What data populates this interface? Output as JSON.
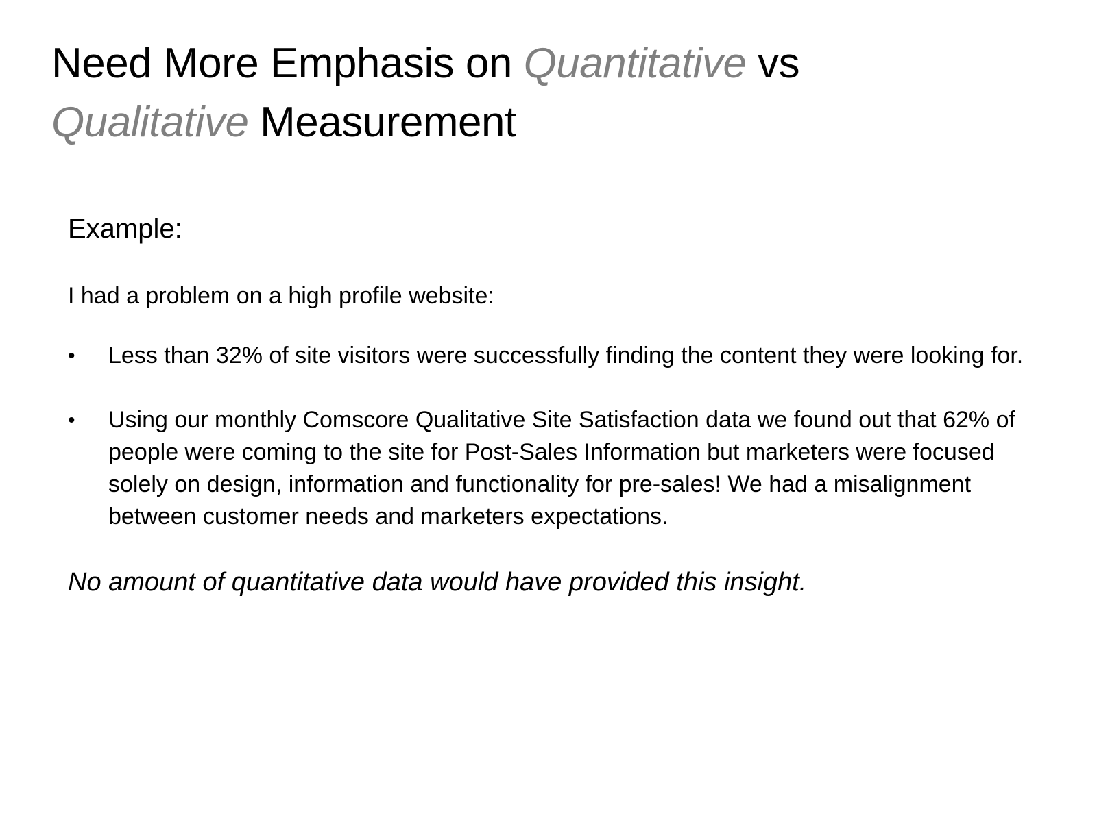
{
  "slide": {
    "title": {
      "part1": "Need More Emphasis on ",
      "em1": "Quantitative",
      "part2": " vs ",
      "em2": "Qualitative",
      "part3": " Measurement"
    },
    "label": "Example:",
    "intro": "I had a problem on a high profile website:",
    "bullet_glyph": "•",
    "bullets": [
      "Less than 32% of site visitors were successfully finding the content they were looking for.",
      "Using our monthly Comscore Qualitative Site Satisfaction data we found out that 62% of people were coming to the site for Post-Sales Information but marketers were focused solely on design, information and functionality for pre-sales! We had a misalignment between customer needs and marketers expectations."
    ],
    "closing": "No amount of quantitative data would have provided this insight.",
    "colors": {
      "text": "#000000",
      "emphasis": "#808080",
      "background": "#ffffff"
    }
  }
}
